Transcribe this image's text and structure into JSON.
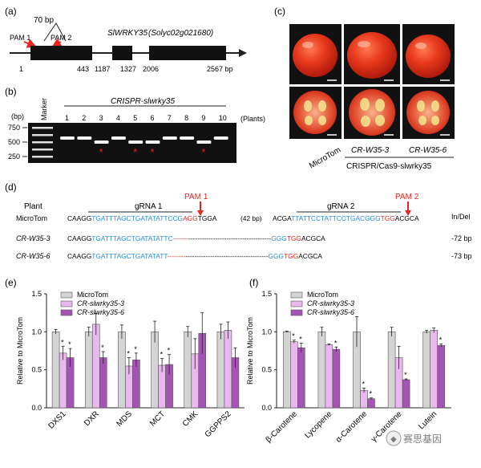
{
  "panel_a": {
    "label": "(a)",
    "gene": "SlWRKY35",
    "locus": "(Solyc02g021680)",
    "deletion": "70 bp",
    "pam1": "PAM 1",
    "pam2": "PAM 2",
    "ticks": [
      "1",
      "443",
      "1187",
      "1327",
      "2006",
      "2567 bp"
    ]
  },
  "panel_b": {
    "label": "(b)",
    "unit": "(bp)",
    "marker": "Marker",
    "title": "CRISPR-slwrky35",
    "sizes": [
      "750",
      "500",
      "250"
    ],
    "lanes": [
      "1",
      "2",
      "3",
      "4",
      "5",
      "6",
      "7",
      "8",
      "9",
      "10"
    ],
    "plants": "(Plants)",
    "mutant_lanes": [
      3,
      5,
      6,
      9
    ]
  },
  "panel_c": {
    "label": "(c)",
    "ctrl": "MicroTom",
    "line3": "CR-W35-3",
    "line6": "CR-W35-6",
    "group": "CRISPR/Cas9-slwrky35"
  },
  "panel_d": {
    "label": "(d)",
    "plant_hdr": "Plant",
    "grna1": "gRNA 1",
    "grna2": "gRNA 2",
    "pam1": "PAM 1",
    "pam2": "PAM 2",
    "indel_hdr": "In/Del",
    "gap": "(42 bp)",
    "rows": [
      {
        "name": "MicroTom",
        "s1": "CAAGG",
        "s2": "TGATTTAGCTGATATATTCCG",
        "s3": "AGG",
        "s4": "TGGA",
        "s5": "ACGA",
        "s6": "TTATTCCTATTCCTGACGGG",
        "s7": "TGG",
        "s8": "ACGCA",
        "indel": ""
      },
      {
        "name": "CR-W35-3",
        "s1": "CAAGG",
        "s2": "TGATTTAGCTGATATATTC",
        "dash1": "-------",
        "dash2": "-------------------------------------",
        "s6": "GGG",
        "s7": "TGG",
        "s8": "ACGCA",
        "indel": "-72 bp"
      },
      {
        "name": "CR-W35-6",
        "s1": "CAAGG",
        "s2": "TGATTTAGCTGATATATT",
        "dash1": "--------",
        "dash2": "-------------------------------------",
        "s6": "GGG",
        "s7": "TGG",
        "s8": "ACGCA",
        "indel": "-73 bp"
      }
    ]
  },
  "panel_e": {
    "label": "(e)"
  },
  "panel_f": {
    "label": "(f)"
  },
  "watermark": "赛思基因",
  "colors": {
    "ctrl": "#d4d4d4",
    "l3": "#e8b8ee",
    "l6": "#a455b4",
    "red": "#e8251e",
    "blue": "#2a8bd6"
  },
  "chart_data": [
    {
      "type": "bar",
      "title": "",
      "ylabel": "Relative to MicroTom",
      "ylim": [
        0,
        1.5
      ],
      "yticks": [
        "0.0",
        "0.5",
        "1.0",
        "1.5"
      ],
      "categories": [
        "DXS1",
        "DXR",
        "MDS",
        "MCT",
        "CMK",
        "GGPPS2"
      ],
      "legend": [
        "MicroTom",
        "CR-slwrky35-3",
        "CR-slwrky35-6"
      ],
      "series": [
        {
          "name": "MicroTom",
          "values": [
            1.0,
            1.0,
            1.0,
            1.0,
            1.0,
            1.0
          ],
          "err": [
            0.03,
            0.06,
            0.09,
            0.14,
            0.07,
            0.1
          ]
        },
        {
          "name": "CR-slwrky35-3",
          "values": [
            0.72,
            1.1,
            0.55,
            0.56,
            0.71,
            1.02
          ],
          "err": [
            0.09,
            0.14,
            0.11,
            0.09,
            0.2,
            0.11
          ]
        },
        {
          "name": "CR-slwrky35-6",
          "values": [
            0.66,
            0.66,
            0.63,
            0.57,
            0.98,
            0.66
          ],
          "err": [
            0.12,
            0.08,
            0.09,
            0.13,
            0.27,
            0.13
          ]
        }
      ],
      "stars": [
        [
          false,
          true,
          true
        ],
        [
          false,
          false,
          true
        ],
        [
          false,
          true,
          true
        ],
        [
          false,
          true,
          true
        ],
        [
          false,
          false,
          false
        ],
        [
          false,
          false,
          false
        ]
      ]
    },
    {
      "type": "bar",
      "title": "",
      "ylabel": "Relative to MicroTom",
      "ylim": [
        0,
        1.5
      ],
      "yticks": [
        "0.0",
        "0.5",
        "1.0",
        "1.5"
      ],
      "categories": [
        "β-Carotene",
        "Lycopene",
        "α-Carotene",
        "γ-Carotene",
        "Lutein"
      ],
      "legend": [
        "MicroTom",
        "CR-slwrky35-3",
        "CR-slwrky35-6"
      ],
      "series": [
        {
          "name": "MicroTom",
          "values": [
            1.0,
            1.0,
            1.0,
            1.0,
            1.0
          ],
          "err": [
            0.01,
            0.06,
            0.2,
            0.06,
            0.02
          ]
        },
        {
          "name": "CR-slwrky35-3",
          "values": [
            0.87,
            0.83,
            0.23,
            0.66,
            1.02
          ],
          "err": [
            0.02,
            0.01,
            0.03,
            0.15,
            0.03
          ]
        },
        {
          "name": "CR-slwrky35-6",
          "values": [
            0.79,
            0.77,
            0.12,
            0.37,
            0.82
          ],
          "err": [
            0.06,
            0.03,
            0.01,
            0.01,
            0.02
          ]
        }
      ],
      "stars": [
        [
          false,
          true,
          true
        ],
        [
          false,
          false,
          true
        ],
        [
          false,
          true,
          true
        ],
        [
          false,
          false,
          true
        ],
        [
          false,
          false,
          true
        ]
      ]
    }
  ]
}
